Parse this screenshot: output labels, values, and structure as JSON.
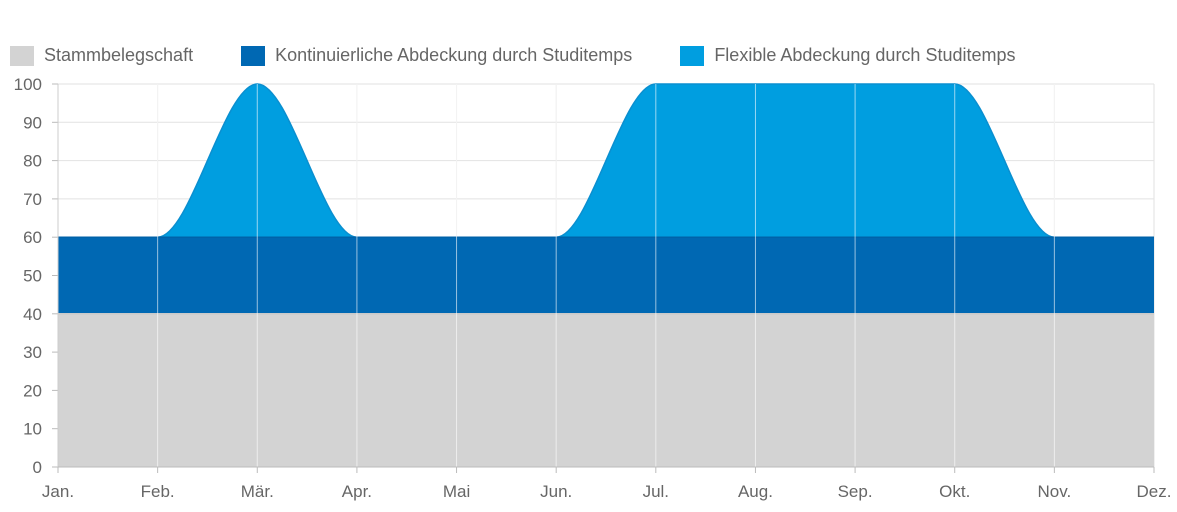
{
  "chart_data": {
    "type": "area",
    "stacked": true,
    "categories": [
      "Jan.",
      "Feb.",
      "Mär.",
      "Apr.",
      "Mai",
      "Jun.",
      "Jul.",
      "Aug.",
      "Sep.",
      "Okt.",
      "Nov.",
      "Dez."
    ],
    "series": [
      {
        "name": "Stammbelegschaft",
        "color": "#d3d3d3",
        "values": [
          40,
          40,
          40,
          40,
          40,
          40,
          40,
          40,
          40,
          40,
          40,
          40
        ]
      },
      {
        "name": "Kontinuierliche Abdeckung durch Studitemps",
        "color": "#0068b3",
        "values": [
          20,
          20,
          20,
          20,
          20,
          20,
          20,
          20,
          20,
          20,
          20,
          20
        ]
      },
      {
        "name": "Flexible Abdeckung durch Studitemps",
        "color": "#009ee0",
        "values": [
          0,
          0,
          40,
          0,
          0,
          0,
          40,
          40,
          40,
          40,
          0,
          0
        ]
      }
    ],
    "ylim": [
      0,
      100
    ],
    "yticks": [
      "0",
      "10",
      "20",
      "30",
      "40",
      "50",
      "60",
      "70",
      "80",
      "90",
      "100"
    ],
    "grid": true,
    "legend_position": "top-left",
    "smooth": true
  }
}
